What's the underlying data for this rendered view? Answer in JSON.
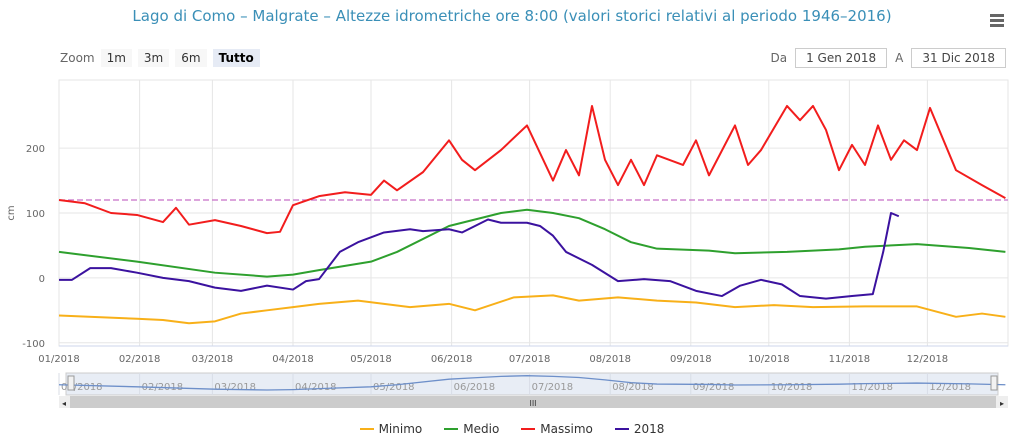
{
  "title": "Lago di Como – Malgrate – Altezze idrometriche ore 8:00 (valori storici relativi al periodo 1946–2016)",
  "zoom": {
    "label": "Zoom",
    "buttons": [
      "1m",
      "3m",
      "6m",
      "Tutto"
    ],
    "active": "Tutto"
  },
  "range": {
    "from_label": "Da",
    "from": "1 Gen 2018",
    "to_label": "A",
    "to": "31 Dic 2018"
  },
  "chart_data": {
    "type": "line",
    "title": "Lago di Como – Malgrate – Altezze idrometriche ore 8:00 (valori storici relativi al periodo 1946–2016)",
    "ylabel": "cm",
    "xlabel": "",
    "ylim": [
      -105,
      305
    ],
    "yticks": [
      -100,
      0,
      100,
      200
    ],
    "xticks": [
      "01/2018",
      "02/2018",
      "03/2018",
      "04/2018",
      "05/2018",
      "06/2018",
      "07/2018",
      "08/2018",
      "09/2018",
      "10/2018",
      "11/2018",
      "12/2018"
    ],
    "xtick_days": [
      0,
      31,
      59,
      90,
      120,
      151,
      181,
      212,
      243,
      273,
      304,
      334
    ],
    "reference_line": 120,
    "colors": {
      "Minimo": "#f8b019",
      "Medio": "#2ea02e",
      "Massimo": "#f21d1d",
      "2018": "#3b129f",
      "ref": "#c76fc7"
    },
    "series": [
      {
        "name": "Minimo",
        "x": [
          0,
          30,
          40,
          50,
          60,
          70,
          80,
          90,
          100,
          115,
          125,
          135,
          150,
          160,
          175,
          190,
          200,
          215,
          230,
          245,
          260,
          275,
          290,
          310,
          330,
          345,
          355,
          364
        ],
        "y": [
          -58,
          -63,
          -65,
          -70,
          -67,
          -55,
          -50,
          -45,
          -40,
          -35,
          -40,
          -45,
          -40,
          -50,
          -30,
          -27,
          -35,
          -30,
          -35,
          -38,
          -45,
          -42,
          -45,
          -44,
          -44,
          -60,
          -55,
          -60
        ]
      },
      {
        "name": "Medio",
        "x": [
          0,
          30,
          60,
          80,
          90,
          100,
          120,
          130,
          150,
          160,
          170,
          180,
          190,
          200,
          210,
          220,
          230,
          250,
          260,
          280,
          300,
          310,
          330,
          350,
          364
        ],
        "y": [
          40,
          25,
          8,
          2,
          5,
          12,
          25,
          40,
          80,
          90,
          100,
          105,
          100,
          92,
          75,
          55,
          45,
          42,
          38,
          40,
          44,
          48,
          52,
          46,
          40
        ]
      },
      {
        "name": "Massimo",
        "x": [
          0,
          10,
          20,
          30,
          40,
          45,
          50,
          60,
          70,
          80,
          85,
          90,
          100,
          110,
          120,
          125,
          130,
          140,
          150,
          155,
          160,
          170,
          180,
          190,
          195,
          200,
          205,
          210,
          215,
          220,
          225,
          230,
          240,
          245,
          250,
          260,
          265,
          270,
          280,
          285,
          290,
          295,
          300,
          305,
          310,
          315,
          320,
          325,
          330,
          335,
          345,
          355,
          364
        ],
        "y": [
          120,
          115,
          100,
          97,
          86,
          108,
          82,
          89,
          80,
          69,
          71,
          112,
          126,
          132,
          128,
          150,
          135,
          163,
          212,
          182,
          166,
          197,
          235,
          150,
          197,
          158,
          265,
          182,
          143,
          182,
          143,
          189,
          174,
          212,
          158,
          235,
          174,
          197,
          265,
          243,
          265,
          228,
          166,
          205,
          174,
          235,
          182,
          212,
          197,
          262,
          166,
          143,
          123
        ]
      },
      {
        "name": "2018",
        "x": [
          0,
          5,
          12,
          20,
          30,
          40,
          50,
          60,
          70,
          80,
          90,
          95,
          100,
          108,
          115,
          125,
          135,
          140,
          150,
          155,
          165,
          170,
          180,
          185,
          190,
          195,
          205,
          215,
          225,
          235,
          245,
          255,
          262,
          270,
          278,
          285,
          295,
          305,
          313,
          317,
          320,
          323
        ],
        "y": [
          -3,
          -3,
          15,
          15,
          8,
          0,
          -5,
          -15,
          -20,
          -12,
          -18,
          -5,
          -2,
          40,
          55,
          70,
          75,
          72,
          75,
          70,
          90,
          85,
          85,
          80,
          65,
          40,
          20,
          -5,
          -2,
          -5,
          -20,
          -28,
          -12,
          -3,
          -10,
          -28,
          -32,
          -28,
          -25,
          40,
          100,
          95
        ]
      }
    ]
  },
  "navigator": {
    "xticks": [
      "01/2018",
      "02/2018",
      "03/2018",
      "04/2018",
      "05/2018",
      "06/2018",
      "07/2018",
      "08/2018",
      "09/2018",
      "10/2018",
      "11/2018",
      "12/2018"
    ]
  },
  "legend": [
    "Minimo",
    "Medio",
    "Massimo",
    "2018"
  ]
}
